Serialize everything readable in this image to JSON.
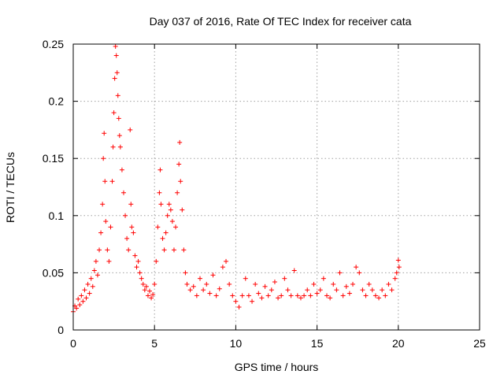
{
  "chart_data": {
    "type": "scatter",
    "title": "Day 037 of 2016, Rate Of TEC Index for receiver cata",
    "xlabel": "GPS time / hours",
    "ylabel": "ROTI / TECUs",
    "xlim": [
      0,
      25
    ],
    "ylim": [
      0,
      0.25
    ],
    "xticks": [
      0,
      5,
      10,
      15,
      20,
      25
    ],
    "xtick_labels": [
      "0",
      "5",
      "10",
      "15",
      "20",
      "25"
    ],
    "yticks": [
      0,
      0.05,
      0.1,
      0.15,
      0.2,
      0.25
    ],
    "ytick_labels": [
      "0",
      "0.05",
      "0.1",
      "0.15",
      "0.2",
      "0.25"
    ],
    "grid": true,
    "marker": "+",
    "series": [
      {
        "name": "",
        "color": "#ff0000",
        "points": [
          [
            0.0,
            0.016
          ],
          [
            0.1,
            0.021
          ],
          [
            0.2,
            0.019
          ],
          [
            0.3,
            0.027
          ],
          [
            0.4,
            0.022
          ],
          [
            0.5,
            0.03
          ],
          [
            0.6,
            0.025
          ],
          [
            0.7,
            0.035
          ],
          [
            0.8,
            0.028
          ],
          [
            0.9,
            0.04
          ],
          [
            1.0,
            0.032
          ],
          [
            1.1,
            0.045
          ],
          [
            1.2,
            0.038
          ],
          [
            1.3,
            0.052
          ],
          [
            1.4,
            0.06
          ],
          [
            1.5,
            0.048
          ],
          [
            1.6,
            0.07
          ],
          [
            1.7,
            0.085
          ],
          [
            1.8,
            0.11
          ],
          [
            1.85,
            0.15
          ],
          [
            1.9,
            0.172
          ],
          [
            1.95,
            0.13
          ],
          [
            2.0,
            0.095
          ],
          [
            2.1,
            0.07
          ],
          [
            2.2,
            0.06
          ],
          [
            2.3,
            0.09
          ],
          [
            2.4,
            0.13
          ],
          [
            2.45,
            0.16
          ],
          [
            2.5,
            0.19
          ],
          [
            2.55,
            0.22
          ],
          [
            2.6,
            0.248
          ],
          [
            2.65,
            0.24
          ],
          [
            2.7,
            0.225
          ],
          [
            2.75,
            0.205
          ],
          [
            2.8,
            0.185
          ],
          [
            2.85,
            0.17
          ],
          [
            2.9,
            0.16
          ],
          [
            3.0,
            0.14
          ],
          [
            3.1,
            0.12
          ],
          [
            3.2,
            0.1
          ],
          [
            3.3,
            0.08
          ],
          [
            3.4,
            0.07
          ],
          [
            3.5,
            0.175
          ],
          [
            3.55,
            0.11
          ],
          [
            3.6,
            0.09
          ],
          [
            3.7,
            0.085
          ],
          [
            3.8,
            0.065
          ],
          [
            3.9,
            0.055
          ],
          [
            4.0,
            0.06
          ],
          [
            4.1,
            0.05
          ],
          [
            4.2,
            0.045
          ],
          [
            4.3,
            0.04
          ],
          [
            4.4,
            0.035
          ],
          [
            4.5,
            0.038
          ],
          [
            4.6,
            0.03
          ],
          [
            4.7,
            0.034
          ],
          [
            4.8,
            0.028
          ],
          [
            4.9,
            0.031
          ],
          [
            5.0,
            0.04
          ],
          [
            5.1,
            0.06
          ],
          [
            5.2,
            0.09
          ],
          [
            5.3,
            0.12
          ],
          [
            5.35,
            0.14
          ],
          [
            5.4,
            0.11
          ],
          [
            5.5,
            0.08
          ],
          [
            5.6,
            0.07
          ],
          [
            5.7,
            0.085
          ],
          [
            5.8,
            0.1
          ],
          [
            5.9,
            0.11
          ],
          [
            6.0,
            0.105
          ],
          [
            6.1,
            0.095
          ],
          [
            6.2,
            0.07
          ],
          [
            6.3,
            0.09
          ],
          [
            6.4,
            0.12
          ],
          [
            6.5,
            0.145
          ],
          [
            6.55,
            0.164
          ],
          [
            6.6,
            0.13
          ],
          [
            6.7,
            0.105
          ],
          [
            6.8,
            0.07
          ],
          [
            6.9,
            0.05
          ],
          [
            7.0,
            0.04
          ],
          [
            7.2,
            0.035
          ],
          [
            7.4,
            0.038
          ],
          [
            7.6,
            0.03
          ],
          [
            7.8,
            0.045
          ],
          [
            8.0,
            0.035
          ],
          [
            8.2,
            0.04
          ],
          [
            8.4,
            0.032
          ],
          [
            8.6,
            0.048
          ],
          [
            8.8,
            0.03
          ],
          [
            9.0,
            0.036
          ],
          [
            9.2,
            0.055
          ],
          [
            9.4,
            0.06
          ],
          [
            9.6,
            0.04
          ],
          [
            9.8,
            0.03
          ],
          [
            10.0,
            0.025
          ],
          [
            10.2,
            0.02
          ],
          [
            10.4,
            0.03
          ],
          [
            10.6,
            0.045
          ],
          [
            10.8,
            0.03
          ],
          [
            11.0,
            0.025
          ],
          [
            11.2,
            0.04
          ],
          [
            11.4,
            0.032
          ],
          [
            11.6,
            0.028
          ],
          [
            11.8,
            0.038
          ],
          [
            12.0,
            0.03
          ],
          [
            12.2,
            0.035
          ],
          [
            12.4,
            0.042
          ],
          [
            12.6,
            0.028
          ],
          [
            12.8,
            0.03
          ],
          [
            13.0,
            0.045
          ],
          [
            13.2,
            0.035
          ],
          [
            13.4,
            0.03
          ],
          [
            13.6,
            0.052
          ],
          [
            13.8,
            0.03
          ],
          [
            14.0,
            0.028
          ],
          [
            14.2,
            0.03
          ],
          [
            14.4,
            0.035
          ],
          [
            14.6,
            0.03
          ],
          [
            14.8,
            0.04
          ],
          [
            15.0,
            0.032
          ],
          [
            15.2,
            0.035
          ],
          [
            15.4,
            0.045
          ],
          [
            15.6,
            0.03
          ],
          [
            15.8,
            0.028
          ],
          [
            16.0,
            0.04
          ],
          [
            16.2,
            0.035
          ],
          [
            16.4,
            0.05
          ],
          [
            16.6,
            0.03
          ],
          [
            16.8,
            0.038
          ],
          [
            17.0,
            0.032
          ],
          [
            17.2,
            0.04
          ],
          [
            17.4,
            0.055
          ],
          [
            17.6,
            0.05
          ],
          [
            17.8,
            0.035
          ],
          [
            18.0,
            0.03
          ],
          [
            18.2,
            0.04
          ],
          [
            18.4,
            0.035
          ],
          [
            18.6,
            0.03
          ],
          [
            18.8,
            0.028
          ],
          [
            19.0,
            0.035
          ],
          [
            19.2,
            0.03
          ],
          [
            19.4,
            0.04
          ],
          [
            19.6,
            0.035
          ],
          [
            19.8,
            0.045
          ],
          [
            19.9,
            0.05
          ],
          [
            20.0,
            0.061
          ],
          [
            20.05,
            0.055
          ]
        ]
      }
    ]
  }
}
